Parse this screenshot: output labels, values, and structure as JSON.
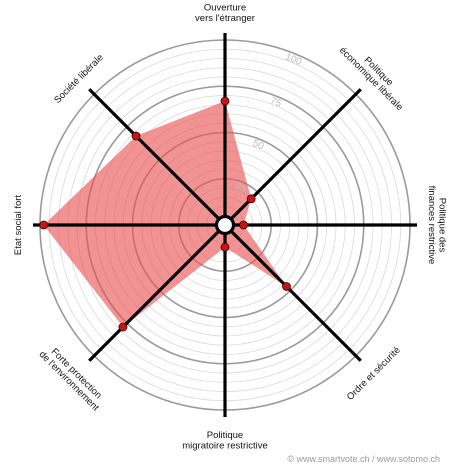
{
  "chart_data": {
    "type": "radar",
    "axes": [
      {
        "key": "ouverture",
        "lines": [
          "Ouverture",
          "vers l'étranger"
        ]
      },
      {
        "key": "eco_liberale",
        "lines": [
          "Politique",
          "économique libérale"
        ]
      },
      {
        "key": "finances",
        "lines": [
          "Politique des",
          "finances restrictive"
        ]
      },
      {
        "key": "ordre",
        "lines": [
          "Ordre et sécurité"
        ]
      },
      {
        "key": "migratoire",
        "lines": [
          "Politique",
          "migratoire restrictive"
        ]
      },
      {
        "key": "environnement",
        "lines": [
          "Forte protection",
          "de l'environnement"
        ]
      },
      {
        "key": "social",
        "lines": [
          "Etat social fort"
        ]
      },
      {
        "key": "societe",
        "lines": [
          "Société libérale"
        ]
      }
    ],
    "values": [
      67,
      20,
      10,
      47,
      12,
      78,
      98,
      68
    ],
    "range": [
      0,
      100
    ],
    "ticks": [
      25,
      50,
      75,
      100
    ],
    "tick_labels": [
      "25",
      "50",
      "75",
      "100"
    ],
    "minor_rings": 20,
    "fill_color": "#e85050",
    "fill_opacity": 0.62,
    "marker_color": "#c81414",
    "spoke_color": "#000000",
    "ring_color": "#9a9a9a"
  },
  "credit": "© www.smartvote.ch / www.sotomo.ch"
}
